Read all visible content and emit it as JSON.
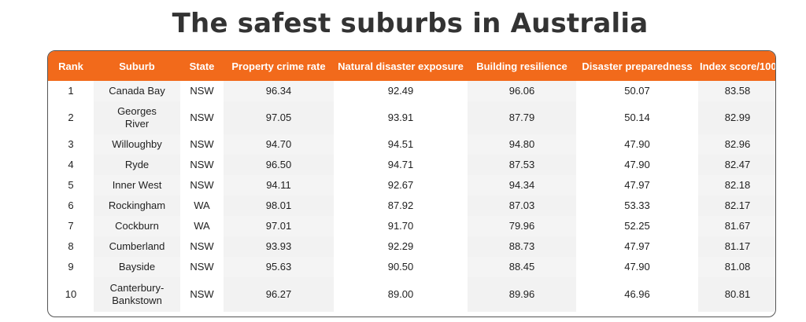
{
  "title": "The safest suburbs in Australia",
  "colors": {
    "header_bg": "#f26a1b",
    "header_text": "#ffffff",
    "alt_cell_bg": "#f2f2f2",
    "border": "#555555"
  },
  "chart_data": {
    "type": "table",
    "title": "The safest suburbs in Australia",
    "columns": [
      "Rank",
      "Suburb",
      "State",
      "Property crime rate",
      "Natural disaster exposure",
      "Building resilience",
      "Disaster preparedness",
      "Index score/100"
    ],
    "rows": [
      {
        "rank": "1",
        "suburb": [
          "Canada Bay"
        ],
        "state": "NSW",
        "crime": "96.34",
        "natural": "92.49",
        "building": "96.06",
        "prep": "50.07",
        "index": "83.58"
      },
      {
        "rank": "2",
        "suburb": [
          "Georges",
          "River"
        ],
        "state": "NSW",
        "crime": "97.05",
        "natural": "93.91",
        "building": "87.79",
        "prep": "50.14",
        "index": "82.99"
      },
      {
        "rank": "3",
        "suburb": [
          "Willoughby"
        ],
        "state": "NSW",
        "crime": "94.70",
        "natural": "94.51",
        "building": "94.80",
        "prep": "47.90",
        "index": "82.96"
      },
      {
        "rank": "4",
        "suburb": [
          "Ryde"
        ],
        "state": "NSW",
        "crime": "96.50",
        "natural": "94.71",
        "building": "87.53",
        "prep": "47.90",
        "index": "82.47"
      },
      {
        "rank": "5",
        "suburb": [
          "Inner West"
        ],
        "state": "NSW",
        "crime": "94.11",
        "natural": "92.67",
        "building": "94.34",
        "prep": "47.97",
        "index": "82.18"
      },
      {
        "rank": "6",
        "suburb": [
          "Rockingham"
        ],
        "state": "WA",
        "crime": "98.01",
        "natural": "87.92",
        "building": "87.03",
        "prep": "53.33",
        "index": "82.17"
      },
      {
        "rank": "7",
        "suburb": [
          "Cockburn"
        ],
        "state": "WA",
        "crime": "97.01",
        "natural": "91.70",
        "building": "79.96",
        "prep": "52.25",
        "index": "81.67"
      },
      {
        "rank": "8",
        "suburb": [
          "Cumberland"
        ],
        "state": "NSW",
        "crime": "93.93",
        "natural": "92.29",
        "building": "88.73",
        "prep": "47.97",
        "index": "81.17"
      },
      {
        "rank": "9",
        "suburb": [
          "Bayside"
        ],
        "state": "NSW",
        "crime": "95.63",
        "natural": "90.50",
        "building": "88.45",
        "prep": "47.90",
        "index": "81.08"
      },
      {
        "rank": "10",
        "suburb": [
          "Canterbury-",
          "Bankstown"
        ],
        "state": "NSW",
        "crime": "96.27",
        "natural": "89.00",
        "building": "89.96",
        "prep": "46.96",
        "index": "80.81"
      }
    ]
  }
}
